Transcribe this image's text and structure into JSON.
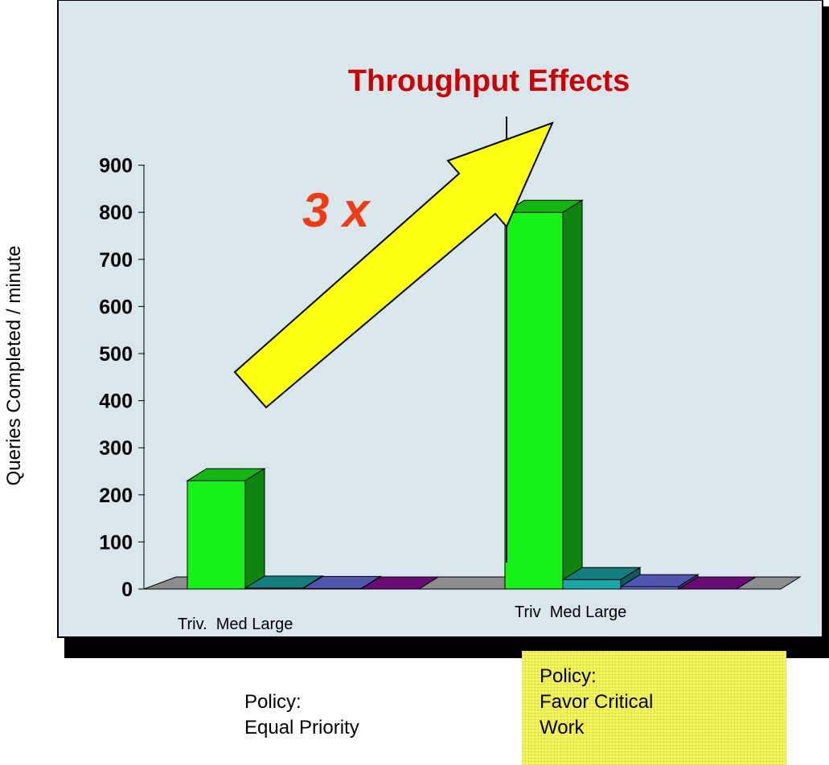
{
  "chart_data": {
    "type": "bar",
    "title": "Throughput Effects",
    "ylabel": "Queries Completed / minute",
    "ylim": [
      0,
      900
    ],
    "yticks": [
      0,
      100,
      200,
      300,
      400,
      500,
      600,
      700,
      800,
      900
    ],
    "groups": [
      {
        "group_label": "Triv.  Med Large",
        "policy_lines": [
          "Policy:",
          "Equal Priority"
        ],
        "bars": [
          {
            "category": "Triv.",
            "value": 230,
            "color": "#19f219"
          },
          {
            "category": "Med",
            "value": 2,
            "color": "#18a8a8"
          },
          {
            "category": "Large",
            "value": 1,
            "color": "#6b72e6"
          },
          {
            "category": "",
            "value": 0,
            "color": "#8a0f9c"
          }
        ]
      },
      {
        "group_label": "Triv  Med Large",
        "policy_lines": [
          "Policy:",
          "Favor Critical",
          "Work"
        ],
        "bars": [
          {
            "category": "Triv",
            "value": 800,
            "color": "#19f219"
          },
          {
            "category": "Med",
            "value": 20,
            "color": "#18a8a8"
          },
          {
            "category": "Large",
            "value": 5,
            "color": "#6b72e6"
          },
          {
            "category": "",
            "value": 0,
            "color": "#8a0f9c"
          }
        ]
      }
    ],
    "annotation": {
      "text": "3 x",
      "arrow_color": "#ffff10",
      "text_color": "#f03c10"
    },
    "colors": {
      "background": "#d9e6ec",
      "title": "#cc0000",
      "frame_shadow": "#000000"
    }
  }
}
